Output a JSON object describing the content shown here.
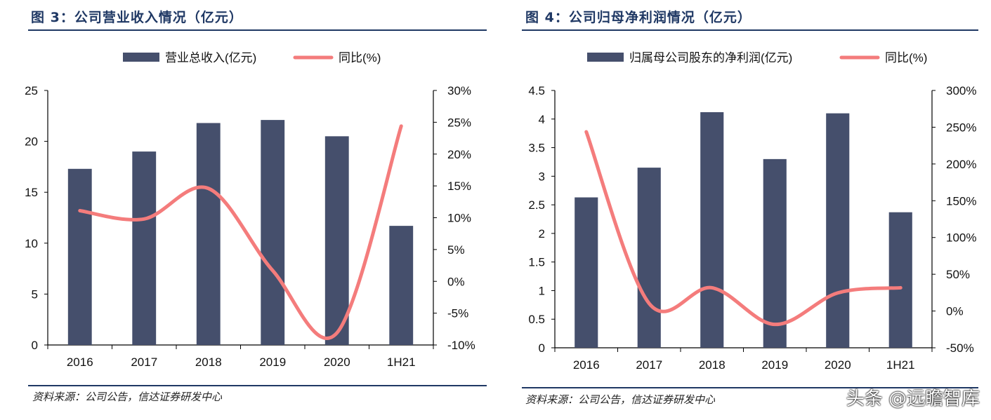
{
  "charts_meta": {
    "bar_color": "#454f6c",
    "line_color": "#f47c7c",
    "title_color": "#1f3864"
  },
  "watermark": "头条 @远瞻智库",
  "chart_data": [
    {
      "type": "bar+line",
      "title": "图 3：公司营业收入情况（亿元）",
      "source": "资料来源：公司公告，信达证券研发中心",
      "categories": [
        "2016",
        "2017",
        "2018",
        "2019",
        "2020",
        "1H21"
      ],
      "series": [
        {
          "name": "营业总收入(亿元)",
          "type": "bar",
          "axis": "left",
          "values": [
            17.3,
            19.0,
            21.8,
            22.1,
            20.5,
            11.7
          ]
        },
        {
          "name": "同比(%)",
          "type": "line",
          "axis": "right",
          "values": [
            11.1,
            9.8,
            14.6,
            1.7,
            -8.1,
            24.4
          ]
        }
      ],
      "ylim_left": [
        0,
        25
      ],
      "yticks_left": [
        "0",
        "5",
        "10",
        "15",
        "20",
        "25"
      ],
      "ylim_right": [
        -10,
        30
      ],
      "yticks_right": [
        "-10%",
        "-5%",
        "0%",
        "5%",
        "10%",
        "15%",
        "20%",
        "25%",
        "30%"
      ],
      "legend": "top",
      "grid": false
    },
    {
      "type": "bar+line",
      "title": "图 4：公司归母净利润情况（亿元）",
      "source": "资料来源：公司公告，信达证券研发中心",
      "categories": [
        "2016",
        "2017",
        "2018",
        "2019",
        "2020",
        "1H21"
      ],
      "series": [
        {
          "name": "归属母公司股东的净利润(亿元)",
          "type": "bar",
          "axis": "left",
          "values": [
            2.63,
            3.15,
            4.12,
            3.3,
            4.1,
            2.37
          ]
        },
        {
          "name": "同比(%)",
          "type": "line",
          "axis": "right",
          "values": [
            243.7,
            10.3,
            31.6,
            -18.2,
            24.6,
            31.6
          ]
        }
      ],
      "ylim_left": [
        0,
        4.5
      ],
      "yticks_left": [
        "0",
        "0.5",
        "1",
        "1.5",
        "2",
        "2.5",
        "3",
        "3.5",
        "4",
        "4.5"
      ],
      "ylim_right": [
        -50,
        300
      ],
      "yticks_right": [
        "-50%",
        "0%",
        "50%",
        "100%",
        "150%",
        "200%",
        "250%",
        "300%"
      ],
      "legend": "top",
      "grid": false
    }
  ]
}
